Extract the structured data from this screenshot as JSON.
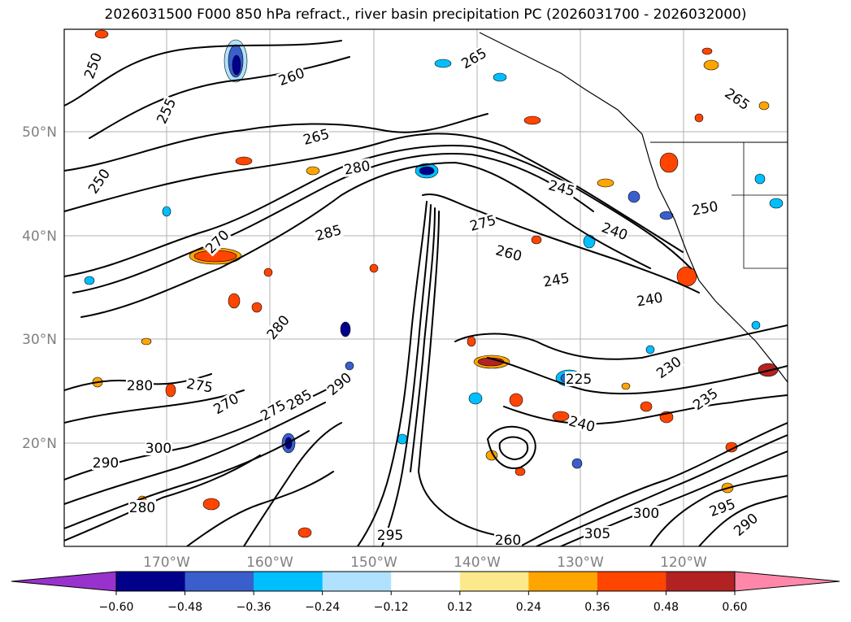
{
  "title": "2026031500 F000 850 hPa refract., river basin precipitation PC (2026031700 - 2026032000)",
  "map": {
    "lat_labels": [
      "50°N",
      "40°N",
      "30°N",
      "20°N"
    ],
    "lon_labels": [
      "170°W",
      "160°W",
      "150°W",
      "140°W",
      "130°W",
      "120°W"
    ],
    "contour_labels": [
      "250",
      "255",
      "260",
      "265",
      "265",
      "265",
      "250",
      "280",
      "285",
      "270",
      "275",
      "260",
      "245",
      "245",
      "240",
      "250",
      "240",
      "230",
      "235",
      "225",
      "240",
      "280",
      "275",
      "290",
      "300",
      "300",
      "295",
      "305",
      "260",
      "295",
      "290",
      "280",
      "285",
      "270",
      "275",
      "280",
      "290"
    ]
  },
  "colorbar": {
    "ticks": [
      "−0.60",
      "−0.48",
      "−0.36",
      "−0.24",
      "−0.12",
      "0.12",
      "0.24",
      "0.36",
      "0.48",
      "0.60"
    ],
    "colors": [
      "#9932cc",
      "#00008b",
      "#3a5fcd",
      "#00bfff",
      "#b0e2ff",
      "#ffffff",
      "#fde98c",
      "#ffa500",
      "#ff4500",
      "#b22222",
      "#ff88aa",
      "#ff88aa"
    ]
  },
  "precip_colors": {
    "neg_strong": "#00008b",
    "neg_mid": "#3a5fcd",
    "neg_light": "#00bfff",
    "neg_faint": "#b0e2ff",
    "pos_faint": "#fde98c",
    "pos_light": "#ffa500",
    "pos_mid": "#ff4500",
    "pos_strong": "#b22222"
  }
}
